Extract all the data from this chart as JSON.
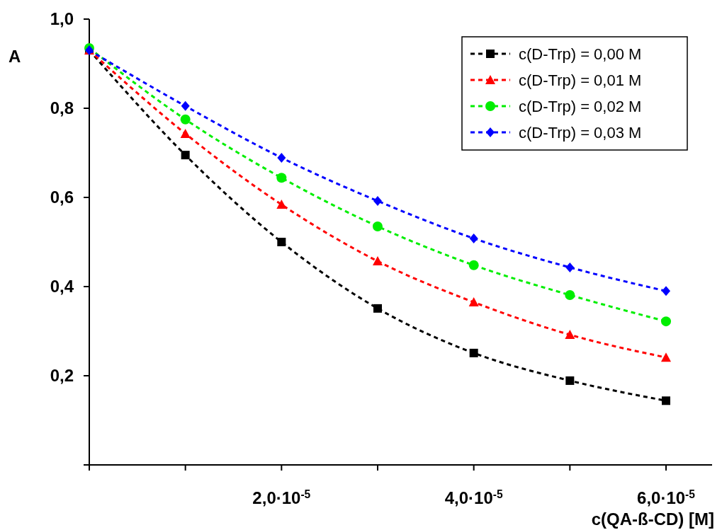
{
  "chart_data": {
    "type": "line",
    "xlabel": "c(QA-ß-CD) [M]",
    "ylabel": "A",
    "categories": [
      null,
      null,
      "2,0·10$^{-5}$",
      null,
      "4,0·10$^{-5}$",
      null,
      "6,0·10$^{-5}$"
    ],
    "series": [
      {
        "name": "c(D-Trp) = 0,00 M",
        "color": "#000000",
        "marker": "square",
        "values": [
          0.93,
          0.695,
          0.5,
          0.351,
          0.251,
          0.189,
          0.144
        ]
      },
      {
        "name": "c(D-Trp) = 0,01 M",
        "color": "#ff0000",
        "marker": "triangle",
        "values": [
          0.93,
          0.743,
          0.584,
          0.457,
          0.365,
          0.292,
          0.241
        ]
      },
      {
        "name": "c(D-Trp) = 0,02 M",
        "color": "#00ee00",
        "marker": "circle",
        "values": [
          0.935,
          0.775,
          0.644,
          0.535,
          0.448,
          0.381,
          0.322
        ]
      },
      {
        "name": "c(D-Trp) = 0,03 M",
        "color": "#0000ff",
        "marker": "diamond",
        "values": [
          0.93,
          0.805,
          0.689,
          0.592,
          0.508,
          0.443,
          0.39
        ]
      }
    ],
    "ylim": [
      0,
      1
    ],
    "yticks": [
      {
        "value": 0,
        "label": null
      },
      {
        "value": 0.2,
        "label": "0,2"
      },
      {
        "value": 0.4,
        "label": "0,4"
      },
      {
        "value": 0.6,
        "label": "0,6"
      },
      {
        "value": 0.8,
        "label": "0,8"
      },
      {
        "value": 1,
        "label": "1,0"
      }
    ],
    "grid": false,
    "legend": "top right",
    "line_style": "dashed"
  }
}
